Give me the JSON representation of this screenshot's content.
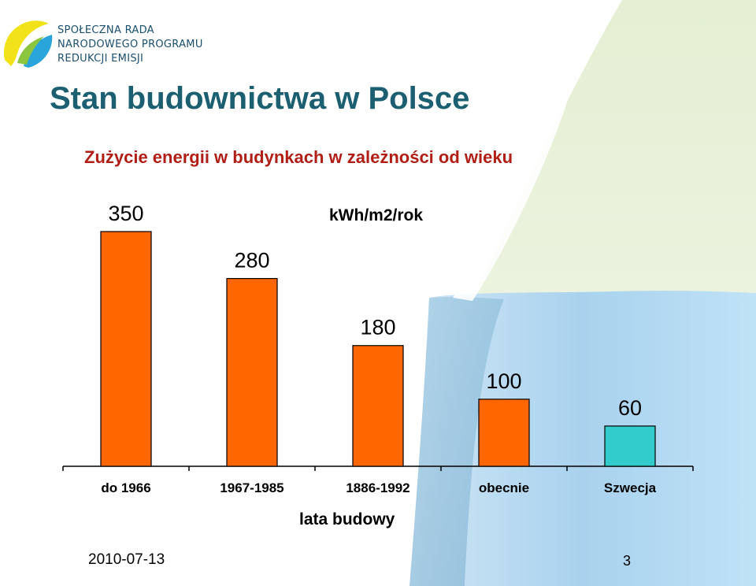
{
  "logo": {
    "line1": "SPOŁECZNA RADA",
    "line2": "NARODOWEGO PROGRAMU",
    "line3": "REDUKCJI EMISJI"
  },
  "slide": {
    "title": "Stan budownictwa w Polsce",
    "subtitle": "Zużycie energii w budynkach w zależności od wieku",
    "date": "2010-07-13",
    "page_number": "3"
  },
  "colors": {
    "bar_default": "#ff6600",
    "bar_highlight": "#33cccc",
    "title": "#1b5f70",
    "subtitle": "#b01e16"
  },
  "chart_data": {
    "type": "bar",
    "title": "",
    "unit_label": "kWh/m2/rok",
    "xlabel": "lata budowy",
    "ylabel": "",
    "categories": [
      "do 1966",
      "1967-1985",
      "1886-1992",
      "obecnie",
      "Szwecja"
    ],
    "values": [
      350,
      280,
      180,
      100,
      60
    ],
    "data_labels": [
      "350",
      "280",
      "180",
      "100",
      "60"
    ],
    "highlight_index": 4,
    "ylim": [
      0,
      350
    ],
    "grid": false,
    "legend": "none"
  }
}
